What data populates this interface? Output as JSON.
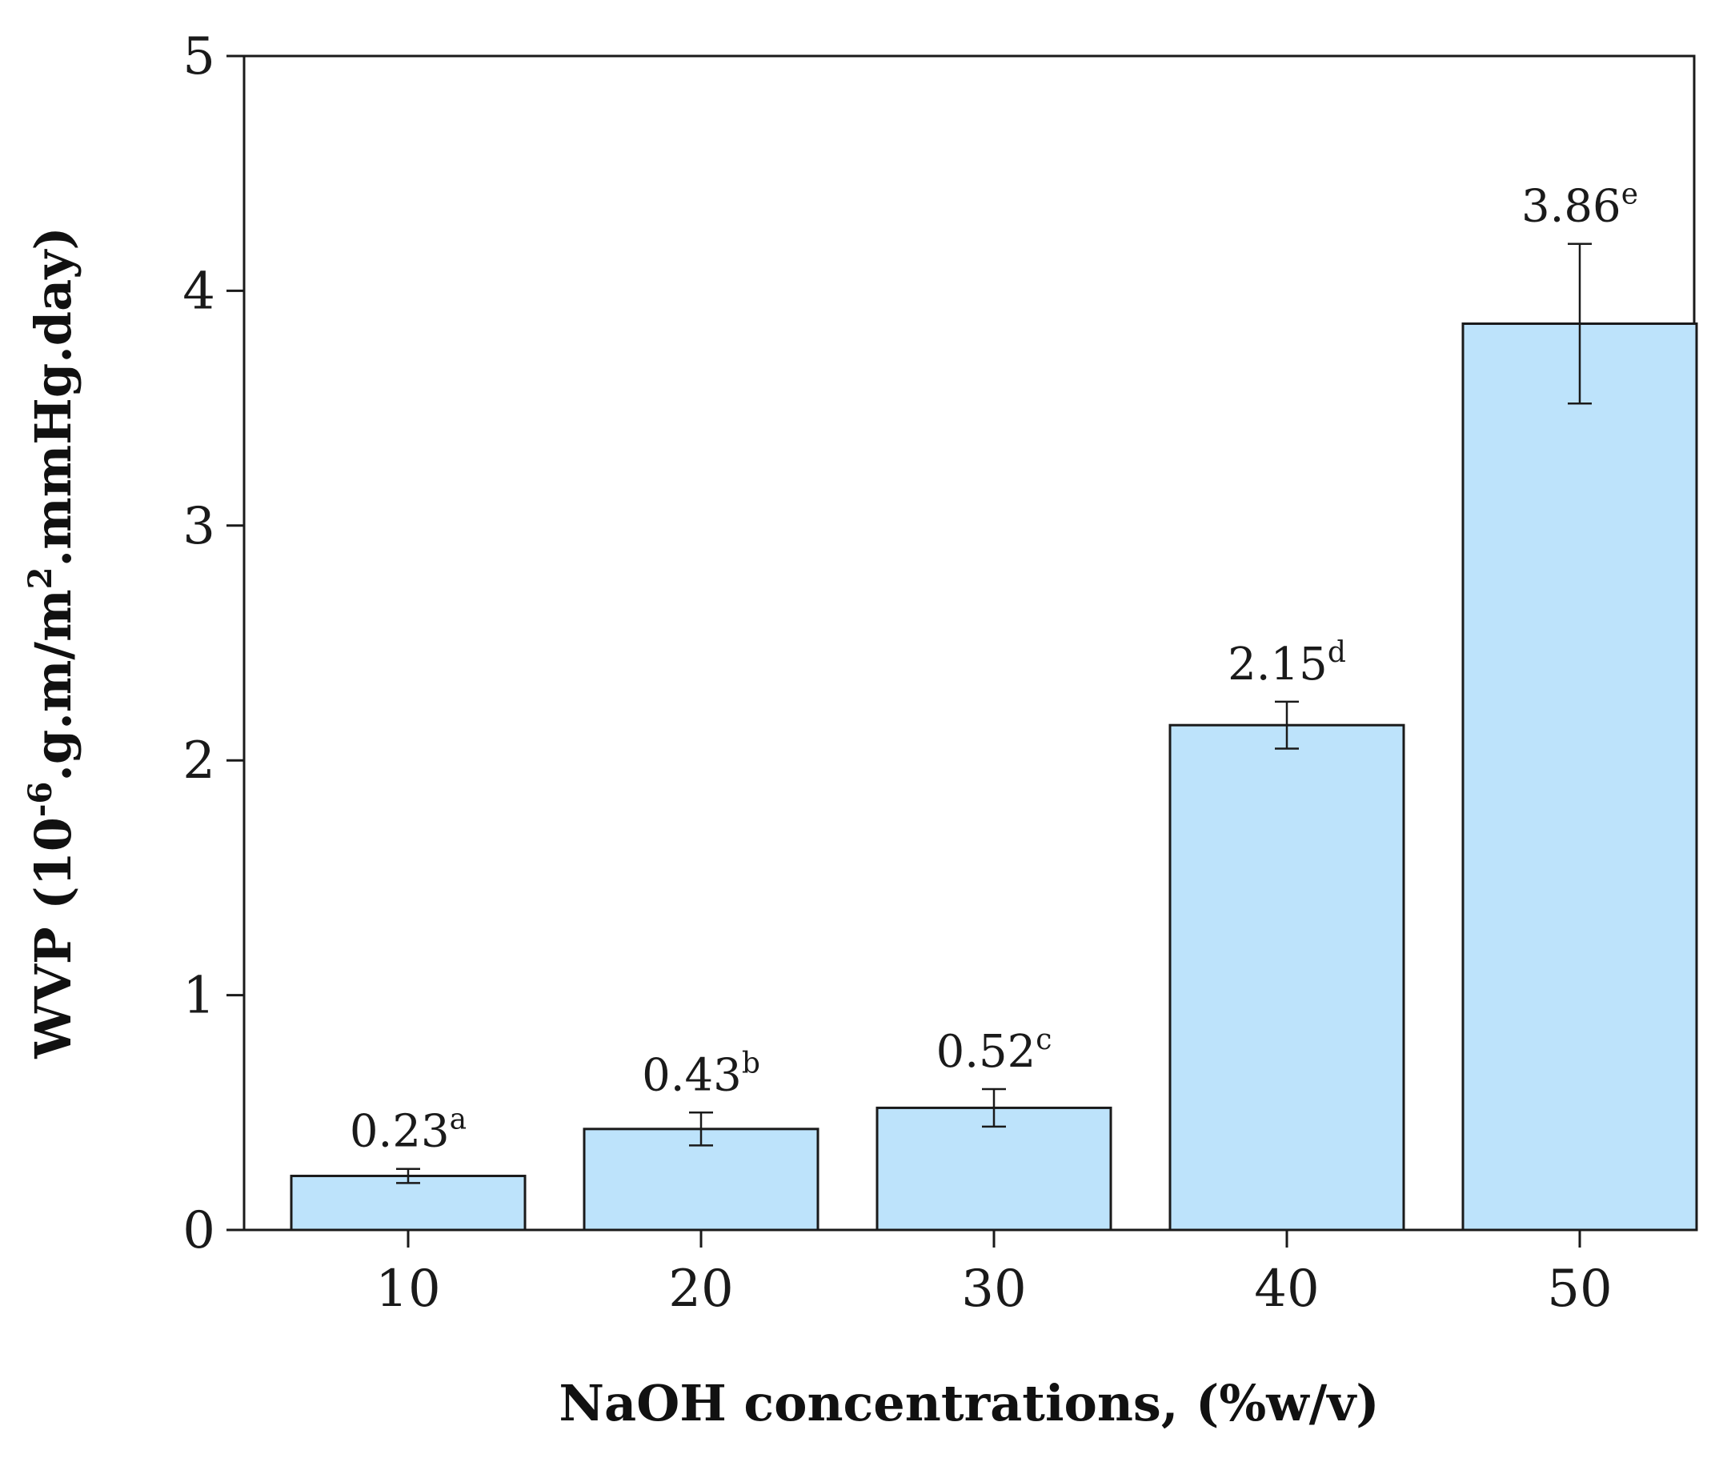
{
  "chart_data": {
    "type": "bar",
    "categories": [
      "10",
      "20",
      "30",
      "40",
      "50"
    ],
    "values": [
      0.23,
      0.43,
      0.52,
      2.15,
      3.86
    ],
    "errors": [
      0.03,
      0.07,
      0.08,
      0.1,
      0.34
    ],
    "data_labels": [
      {
        "value": "0.23",
        "letter": "a"
      },
      {
        "value": "0.43",
        "letter": "b"
      },
      {
        "value": "0.52",
        "letter": "c"
      },
      {
        "value": "2.15",
        "letter": "d"
      },
      {
        "value": "3.86",
        "letter": "e"
      }
    ],
    "yticks": [
      "0",
      "1",
      "2",
      "3",
      "4",
      "5"
    ],
    "ylim": [
      0,
      5
    ],
    "xlabel": "NaOH concentrations, (%w/v)",
    "ylabel": {
      "prefix": "WVP (10",
      "exp1": "-6",
      "middle": ".g.m/m",
      "exp2": "2",
      "suffix": ".mmHg.day)"
    },
    "grid": false
  },
  "colors": {
    "bar_fill": "#bde3fb",
    "bar_stroke": "#1a1a1a",
    "axis": "#1a1a1a"
  }
}
